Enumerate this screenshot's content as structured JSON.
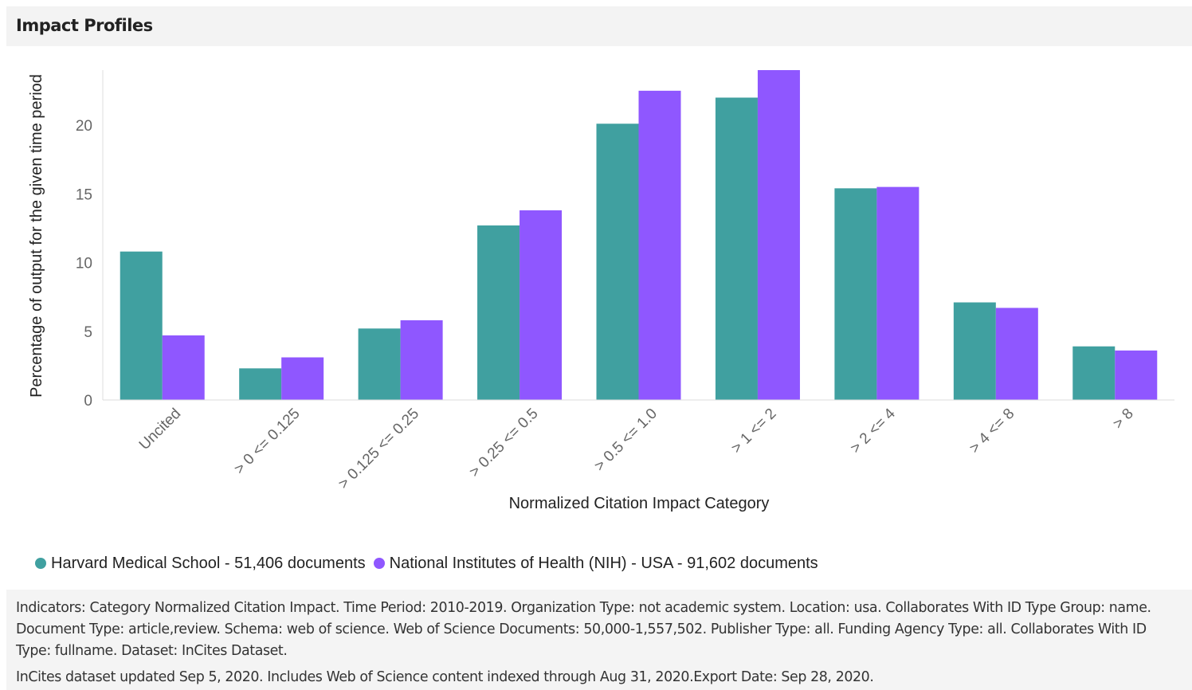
{
  "panel": {
    "title": "Impact Profiles"
  },
  "colors": {
    "series_1": "#40a0a0",
    "series_2": "#8f57ff",
    "axis": "#dddddd",
    "tick": "#666666"
  },
  "chart_data": {
    "type": "bar",
    "title": "",
    "xlabel": "Normalized Citation Impact Category",
    "ylabel": "Percentage of output for the given time period",
    "ylim": [
      0,
      24
    ],
    "yticks": [
      0,
      5,
      10,
      15,
      20
    ],
    "grid": false,
    "legend_position": "bottom-left",
    "categories": [
      "Uncited",
      "> 0 <= 0.125",
      "> 0.125 <= 0.25",
      "> 0.25 <= 0.5",
      "> 0.5 <= 1.0",
      "> 1 <= 2",
      "> 2 <= 4",
      "> 4 <= 8",
      "> 8"
    ],
    "series": [
      {
        "name": "Harvard Medical School - 51,406 documents",
        "values": [
          10.8,
          2.3,
          5.2,
          12.7,
          20.1,
          22.0,
          15.4,
          7.1,
          3.9
        ]
      },
      {
        "name": "National Institutes of Health (NIH) - USA - 91,602 documents",
        "values": [
          4.7,
          3.1,
          5.8,
          13.8,
          22.5,
          24.0,
          15.5,
          6.7,
          3.6
        ]
      }
    ]
  },
  "footer": {
    "indicators": "Indicators:  Category Normalized Citation Impact.  Time Period:  2010-2019.  Organization Type:  not academic system.  Location:  usa.  Collaborates With ID Type Group:  name.  Document Type:  article,review.  Schema:  web of science.  Web of Science Documents:  50,000-1,557,502.  Publisher Type:  all.  Funding Agency Type:  all.  Collaborates With ID Type:  fullname.  Dataset:  InCites Dataset.",
    "dataset_note": "InCites dataset updated Sep 5, 2020. Includes Web of Science content indexed through Aug 31, 2020.Export Date: Sep 28, 2020."
  }
}
